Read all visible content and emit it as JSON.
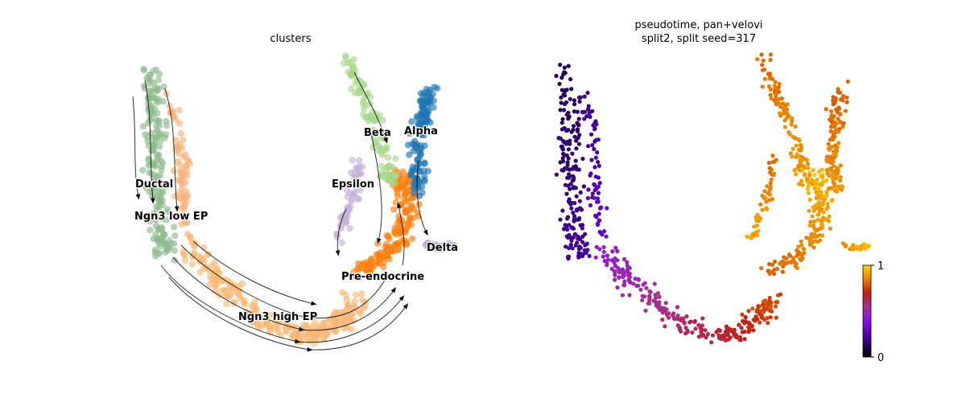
{
  "chart_data": [
    {
      "type": "scatter",
      "title": "clusters",
      "clusters": [
        {
          "name": "Ductal",
          "color": "#8fbc8f"
        },
        {
          "name": "Ngn3 low EP",
          "color": "#f4b27a"
        },
        {
          "name": "Ngn3 high EP",
          "color": "#f9b977"
        },
        {
          "name": "Pre-endocrine",
          "color": "#ff7f0e"
        },
        {
          "name": "Beta",
          "color": "#a8d78a"
        },
        {
          "name": "Alpha",
          "color": "#1f77b4"
        },
        {
          "name": "Epsilon",
          "color": "#c5b0d5"
        },
        {
          "name": "Delta",
          "color": "#b39bc8"
        }
      ],
      "overlay": "velocity streamlines",
      "axes": "off"
    },
    {
      "type": "scatter",
      "title_lines": [
        "pseudotime, pan+velovi",
        "split2, split seed=317"
      ],
      "colorbar": {
        "colormap": "gnuplot",
        "min": 0,
        "max": 1,
        "tick_labels": [
          "1",
          "0"
        ]
      },
      "axes": "off"
    }
  ]
}
